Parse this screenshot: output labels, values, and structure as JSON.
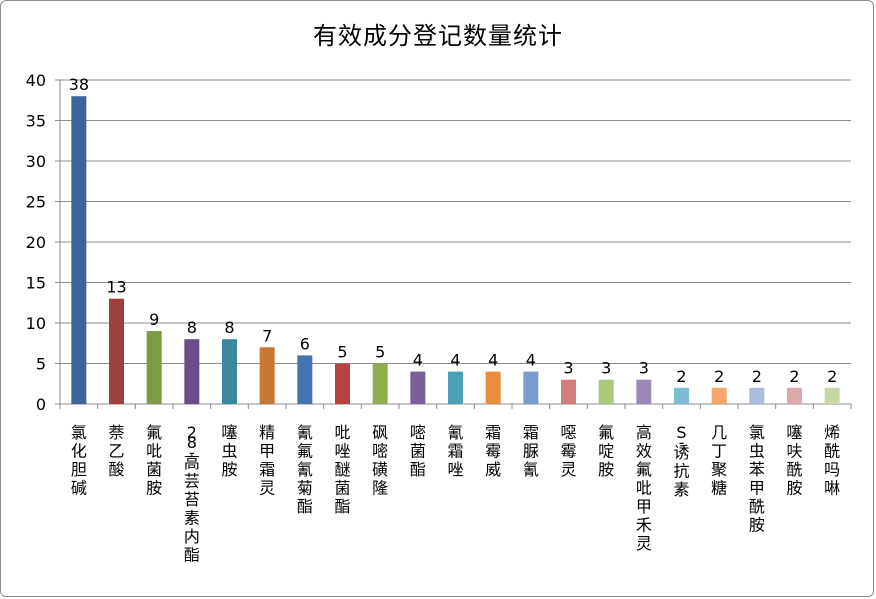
{
  "chart_data": {
    "type": "bar",
    "title": "有效成分登记数量统计",
    "xlabel": "",
    "ylabel": "",
    "ylim": [
      0,
      40
    ],
    "yticks": [
      0,
      5,
      10,
      15,
      20,
      25,
      30,
      35,
      40
    ],
    "grid": true,
    "legend": "none",
    "categories": [
      "氯化胆碱",
      "萘乙酸",
      "氟吡菌胺",
      "28-高芸苔素内酯",
      "噻虫胺",
      "精甲霜灵",
      "氰氟氰菊酯",
      "吡唑醚菌酯",
      "砜嘧磺隆",
      "嘧菌酯",
      "氰霜唑",
      "霜霉威",
      "霜脲氰",
      "噁霉灵",
      "氟啶胺",
      "高效氟吡甲禾灵",
      "S-诱抗素",
      "几丁聚糖",
      "氯虫苯甲酰胺",
      "噻呋酰胺",
      "烯酰吗啉"
    ],
    "values": [
      38,
      13,
      9,
      8,
      8,
      7,
      6,
      5,
      5,
      4,
      4,
      4,
      4,
      3,
      3,
      3,
      2,
      2,
      2,
      2,
      2
    ],
    "colors": [
      "#3D6399",
      "#A0403E",
      "#7D9A44",
      "#684D88",
      "#3A889C",
      "#C87633",
      "#4774B1",
      "#B9413F",
      "#8FAF4D",
      "#7B5E9C",
      "#48A1B8",
      "#E88D3C",
      "#7A9CCC",
      "#D27D7B",
      "#ABC87C",
      "#9A89B7",
      "#7CBCD2",
      "#F3A769",
      "#A9BCDB",
      "#DBAAAA",
      "#C5D8A6"
    ]
  }
}
